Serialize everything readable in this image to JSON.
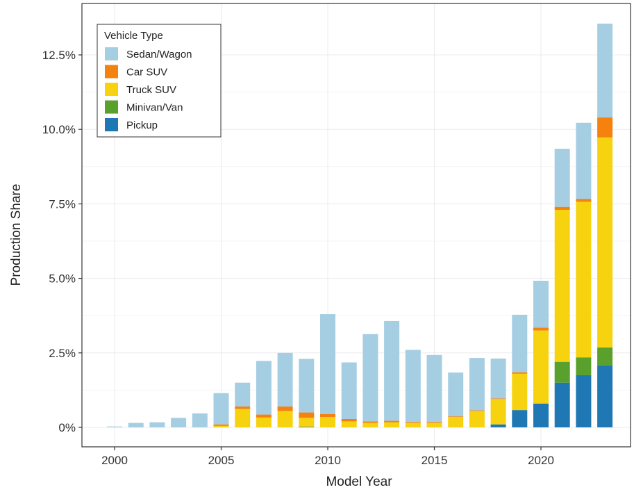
{
  "chart_data": {
    "type": "bar",
    "stacked": true,
    "xlabel": "Model Year",
    "ylabel": "Production Share",
    "ylim": [
      0,
      13.7
    ],
    "yticks": [
      0,
      2.5,
      5.0,
      7.5,
      10.0,
      12.5
    ],
    "ytick_labels": [
      "0%",
      "2.5%",
      "5.0%",
      "7.5%",
      "10.0%",
      "12.5%"
    ],
    "xlim": [
      1999.5,
      2024.5
    ],
    "xticks": [
      2000,
      2005,
      2010,
      2015,
      2020
    ],
    "xtick_labels": [
      "2000",
      "2005",
      "2010",
      "2015",
      "2020"
    ],
    "grid": true,
    "legend": {
      "title": "Vehicle Type",
      "placement": "top-left",
      "entries": [
        "Sedan/Wagon",
        "Car SUV",
        "Truck SUV",
        "Minivan/Van",
        "Pickup"
      ]
    },
    "categories": [
      2000,
      2001,
      2002,
      2003,
      2004,
      2005,
      2006,
      2007,
      2008,
      2009,
      2010,
      2011,
      2012,
      2013,
      2014,
      2015,
      2016,
      2017,
      2018,
      2019,
      2020,
      2021,
      2022,
      2023
    ],
    "series": [
      {
        "name": "Pickup",
        "color": "#1f77b4",
        "values": [
          0,
          0,
          0,
          0,
          0,
          0,
          0,
          0,
          0,
          0.02,
          0,
          0,
          0,
          0,
          0,
          0,
          0,
          0,
          0.1,
          0.58,
          0.8,
          1.5,
          1.75,
          2.08
        ]
      },
      {
        "name": "Minivan/Van",
        "color": "#5aa02c",
        "values": [
          0,
          0,
          0,
          0,
          0,
          0,
          0,
          0,
          0,
          0,
          0,
          0,
          0,
          0,
          0,
          0,
          0,
          0,
          0,
          0,
          0,
          0.7,
          0.6,
          0.6
        ]
      },
      {
        "name": "Truck SUV",
        "color": "#f7d20f",
        "values": [
          0,
          0,
          0,
          0,
          0,
          0.05,
          0.62,
          0.33,
          0.55,
          0.3,
          0.35,
          0.2,
          0.15,
          0.17,
          0.15,
          0.15,
          0.35,
          0.55,
          0.85,
          1.22,
          2.45,
          5.1,
          5.22,
          7.05
        ]
      },
      {
        "name": "Car SUV",
        "color": "#f5820f",
        "values": [
          0,
          0,
          0,
          0,
          0,
          0.05,
          0.08,
          0.1,
          0.15,
          0.18,
          0.1,
          0.08,
          0.05,
          0.05,
          0.03,
          0.03,
          0.02,
          0.02,
          0.02,
          0.05,
          0.1,
          0.1,
          0.1,
          0.67
        ]
      },
      {
        "name": "Sedan/Wagon",
        "color": "#a6cee3",
        "values": [
          0.03,
          0.15,
          0.17,
          0.32,
          0.47,
          1.05,
          0.8,
          1.8,
          1.8,
          1.8,
          3.35,
          1.9,
          2.93,
          3.35,
          2.42,
          2.25,
          1.47,
          1.76,
          1.34,
          1.93,
          1.57,
          1.95,
          2.55,
          3.15
        ]
      }
    ]
  }
}
